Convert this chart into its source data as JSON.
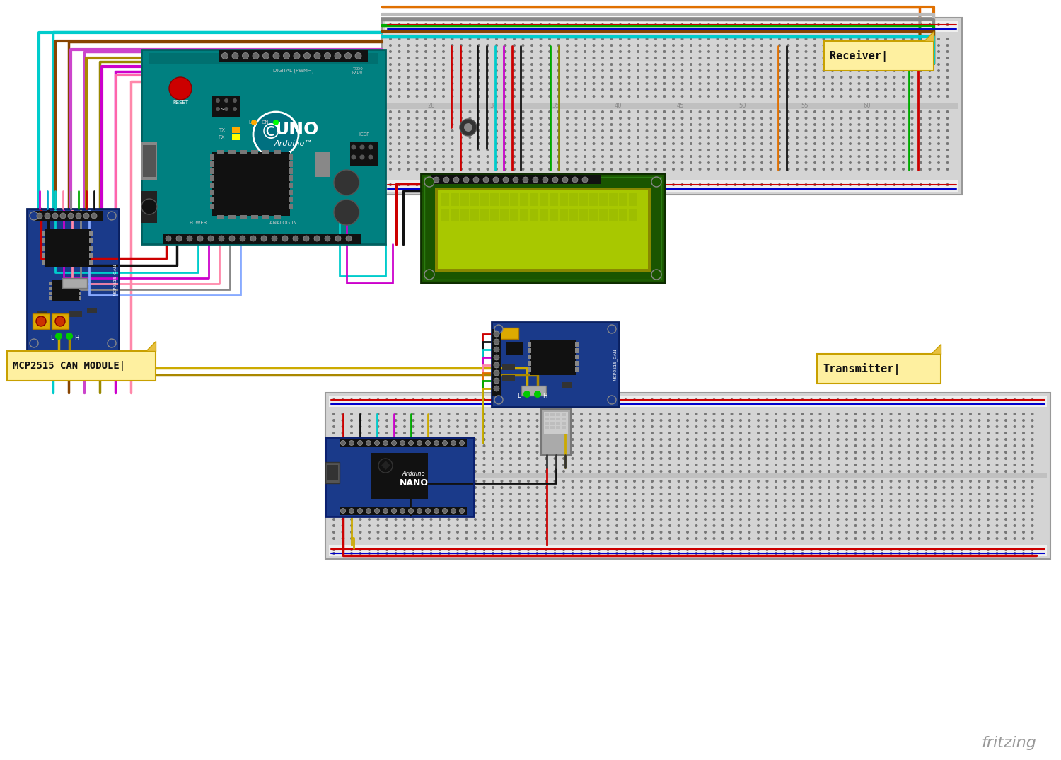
{
  "background_color": "#ffffff",
  "fritzing_text": "fritzing",
  "label_receiver": "Receiver|",
  "label_transmitter": "Transmitter|",
  "label_mcp": "MCP2515 CAN MODULE|",
  "colors": {
    "arduino_teal": "#008080",
    "board_blue": "#1a3a8a",
    "wire_red": "#cc0000",
    "wire_black": "#111111",
    "wire_yellow": "#ccaa00",
    "wire_brown_dark": "#884400",
    "wire_orange": "#e06000",
    "wire_cyan": "#00aacc",
    "wire_magenta": "#cc00cc",
    "wire_green": "#00aa00",
    "wire_teal": "#008899",
    "wire_brown": "#884400",
    "wire_gray": "#888888",
    "wire_pink": "#ff88cc",
    "wire_olive": "#888800",
    "wire_purple": "#8844cc",
    "wire_lime": "#88cc00",
    "lcd_dark_green": "#1a5500",
    "lcd_screen_green": "#a8c800",
    "sticky_bg": "#fef0a0",
    "sticky_fold": "#e8c040",
    "sticky_border": "#c8a000",
    "bb_bg": "#d4d4d4",
    "bb_rail_red": "#ffcccc",
    "bb_rail_blue": "#ccccff"
  }
}
